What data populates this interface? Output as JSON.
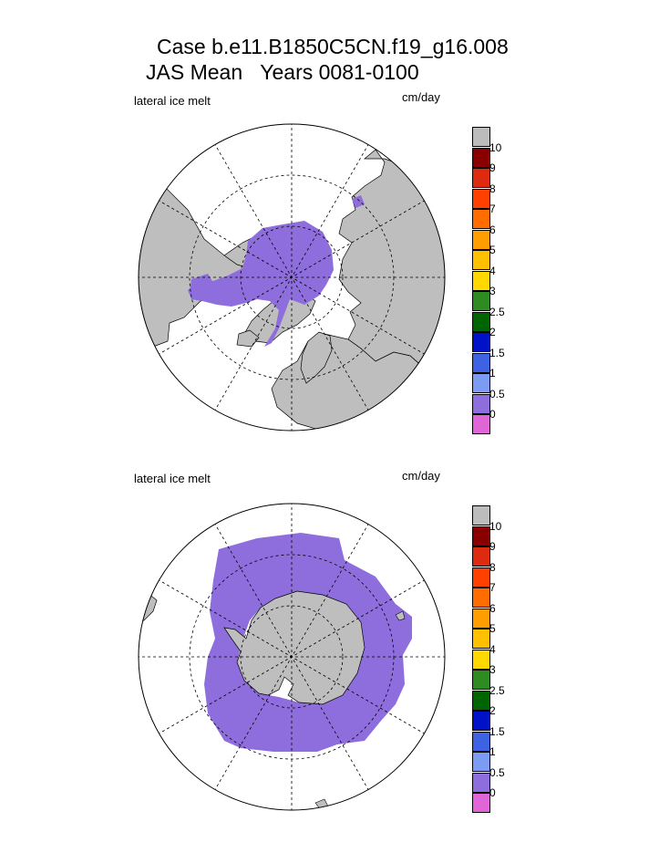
{
  "title": {
    "line1": "Case b.e11.B1850C5CN.f19_g16.008",
    "season": "JAS Mean",
    "years": "Years 0081-0100"
  },
  "panels": [
    {
      "hemisphere": "north",
      "field_label": "lateral ice melt",
      "units": "cm/day"
    },
    {
      "hemisphere": "south",
      "field_label": "lateral ice melt",
      "units": "cm/day"
    }
  ],
  "colorbar": {
    "colors": [
      "#e066d8",
      "#8e6ddc",
      "#7b9cf2",
      "#3d62e4",
      "#0012c8",
      "#006400",
      "#2e8b22",
      "#ffd800",
      "#ffc000",
      "#ff9e00",
      "#ff6d00",
      "#ff4000",
      "#dd2a10",
      "#8a0000",
      "#bcbcbc"
    ],
    "labels": [
      "0",
      "0.5",
      "1",
      "1.5",
      "2",
      "2.5",
      "3",
      "4",
      "5",
      "6",
      "7",
      "8",
      "9",
      "10"
    ]
  },
  "colors": {
    "land": "#bebebe",
    "ice_melt": "#8e6ddc",
    "ocean": "#ffffff"
  }
}
